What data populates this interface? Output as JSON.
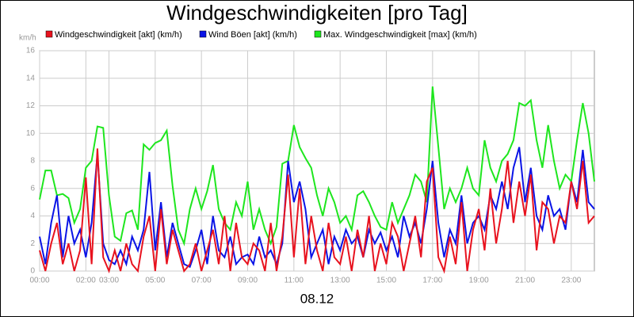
{
  "chart_data": {
    "type": "line",
    "title": "Windgeschwindigkeiten [pro Tag]",
    "y_unit": "km/h",
    "x_label": "08.12",
    "x": [
      0,
      0.25,
      0.5,
      0.75,
      1,
      1.25,
      1.5,
      1.75,
      2,
      2.25,
      2.5,
      2.75,
      3,
      3.25,
      3.5,
      3.75,
      4,
      4.25,
      4.5,
      4.75,
      5,
      5.25,
      5.5,
      5.75,
      6,
      6.25,
      6.5,
      6.75,
      7,
      7.25,
      7.5,
      7.75,
      8,
      8.25,
      8.5,
      8.75,
      9,
      9.25,
      9.5,
      9.75,
      10,
      10.25,
      10.5,
      10.75,
      11,
      11.25,
      11.5,
      11.75,
      12,
      12.25,
      12.5,
      12.75,
      13,
      13.25,
      13.5,
      13.75,
      14,
      14.25,
      14.5,
      14.75,
      15,
      15.25,
      15.5,
      15.75,
      16,
      16.25,
      16.5,
      16.75,
      17,
      17.25,
      17.5,
      17.75,
      18,
      18.25,
      18.5,
      18.75,
      19,
      19.25,
      19.5,
      19.75,
      20,
      20.25,
      20.5,
      20.75,
      21,
      21.25,
      21.5,
      21.75,
      22,
      22.25,
      22.5,
      22.75,
      23,
      23.25,
      23.5,
      23.75,
      24
    ],
    "series": [
      {
        "name": "Windgeschwindigkeit [akt] (km/h)",
        "color": "#e8121e",
        "values": [
          1.5,
          0.0,
          2.0,
          3.5,
          0.5,
          2.0,
          0.0,
          1.5,
          6.8,
          0.5,
          8.9,
          1.0,
          0.0,
          1.5,
          0.0,
          2.0,
          0.5,
          0.0,
          2.5,
          4.0,
          0.0,
          4.5,
          0.5,
          3.0,
          1.5,
          0.0,
          0.5,
          2.0,
          0.0,
          1.5,
          3.0,
          0.5,
          4.0,
          0.0,
          3.5,
          1.0,
          0.5,
          2.0,
          1.5,
          0.0,
          3.5,
          0.0,
          2.5,
          7.0,
          1.0,
          6.0,
          0.5,
          4.0,
          1.5,
          0.0,
          3.5,
          1.0,
          0.5,
          2.5,
          0.0,
          3.0,
          1.0,
          4.0,
          0.0,
          2.0,
          0.5,
          3.5,
          2.5,
          0.0,
          2.0,
          4.0,
          1.0,
          6.5,
          7.5,
          1.0,
          0.0,
          2.5,
          0.5,
          5.0,
          0.0,
          3.0,
          4.5,
          1.5,
          6.0,
          2.0,
          4.5,
          8.0,
          3.5,
          6.5,
          4.0,
          7.0,
          1.5,
          5.0,
          4.5,
          2.0,
          4.0,
          3.5,
          6.5,
          4.5,
          8.0,
          3.5,
          4.0
        ]
      },
      {
        "name": "Wind Böen [akt] (km/h)",
        "color": "#0a14e6",
        "values": [
          2.5,
          0.5,
          3.5,
          5.5,
          1.0,
          4.0,
          2.0,
          3.0,
          1.0,
          3.5,
          8.5,
          2.0,
          0.8,
          0.5,
          1.5,
          0.5,
          2.5,
          1.5,
          3.0,
          7.2,
          1.5,
          5.0,
          1.0,
          3.5,
          2.0,
          0.5,
          0.3,
          1.5,
          3.0,
          0.5,
          4.0,
          1.5,
          1.0,
          2.5,
          0.5,
          1.0,
          1.2,
          0.5,
          2.5,
          1.0,
          1.5,
          0.5,
          2.0,
          8.0,
          5.0,
          6.5,
          4.5,
          1.0,
          2.0,
          3.0,
          0.5,
          2.5,
          1.5,
          3.0,
          2.0,
          2.5,
          1.0,
          3.0,
          2.0,
          2.8,
          1.5,
          2.5,
          1.0,
          4.0,
          2.5,
          3.5,
          2.0,
          4.5,
          8.0,
          3.5,
          1.0,
          3.0,
          2.0,
          5.5,
          2.0,
          3.5,
          4.0,
          3.0,
          5.5,
          4.5,
          6.5,
          4.5,
          7.5,
          9.0,
          5.0,
          7.5,
          4.0,
          3.0,
          5.5,
          4.0,
          4.5,
          3.0,
          6.5,
          5.0,
          8.8,
          5.0,
          4.5
        ]
      },
      {
        "name": "Max. Windgeschwindigkeit [max] (km/h)",
        "color": "#1ee61e",
        "values": [
          5.2,
          7.3,
          7.3,
          5.5,
          5.6,
          5.3,
          3.5,
          4.5,
          7.5,
          8.0,
          10.5,
          10.4,
          5.5,
          2.5,
          2.2,
          4.2,
          4.4,
          3.0,
          9.2,
          8.8,
          9.3,
          9.5,
          10.2,
          6.2,
          3.0,
          2.0,
          4.5,
          6.0,
          4.5,
          5.8,
          7.7,
          4.5,
          3.5,
          3.0,
          5.0,
          4.0,
          6.5,
          3.0,
          4.5,
          3.0,
          2.0,
          3.2,
          7.8,
          8.0,
          10.6,
          9.0,
          8.2,
          7.5,
          5.5,
          4.0,
          6.0,
          5.0,
          3.5,
          4.0,
          3.0,
          5.5,
          5.8,
          5.0,
          4.0,
          3.2,
          3.0,
          5.0,
          3.5,
          4.5,
          5.5,
          7.0,
          6.5,
          5.0,
          13.4,
          9.0,
          4.5,
          6.0,
          5.0,
          6.0,
          7.5,
          6.0,
          5.5,
          9.5,
          7.5,
          6.5,
          8.0,
          8.5,
          9.5,
          12.2,
          12.0,
          12.4,
          9.5,
          7.5,
          10.6,
          8.0,
          6.0,
          7.0,
          6.5,
          9.5,
          12.2,
          10.0,
          6.5
        ]
      }
    ],
    "xlim": [
      0,
      24
    ],
    "xticks": [
      {
        "value": 0,
        "label": "00:00"
      },
      {
        "value": 2,
        "label": "02:00"
      },
      {
        "value": 3,
        "label": "03:00"
      },
      {
        "value": 5,
        "label": "05:00"
      },
      {
        "value": 7,
        "label": "07:00"
      },
      {
        "value": 9,
        "label": "09:00"
      },
      {
        "value": 11,
        "label": "11:00"
      },
      {
        "value": 13,
        "label": "13:00"
      },
      {
        "value": 15,
        "label": "15:00"
      },
      {
        "value": 17,
        "label": "17:00"
      },
      {
        "value": 19,
        "label": "19:00"
      },
      {
        "value": 21,
        "label": "21:00"
      },
      {
        "value": 23,
        "label": "23:00"
      }
    ],
    "ylim": [
      0,
      16
    ],
    "yticks": [
      0,
      2,
      4,
      6,
      8,
      10,
      12,
      14,
      16
    ],
    "grid": true
  }
}
